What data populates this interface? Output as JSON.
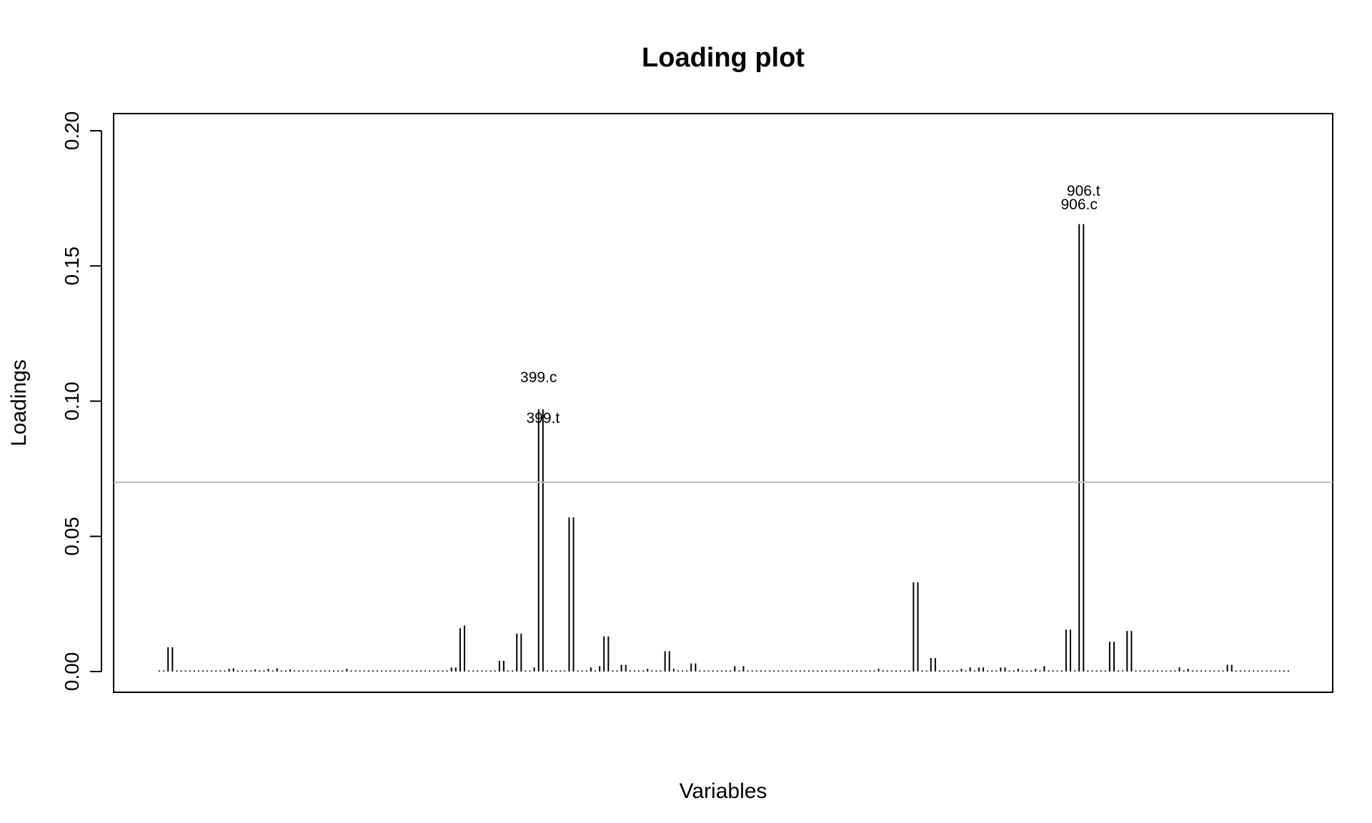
{
  "chart_data": {
    "type": "bar",
    "title": "Loading plot",
    "xlabel": "Variables",
    "ylabel": "Loadings",
    "ylim": [
      0,
      0.2
    ],
    "yticks": [
      "0.00",
      "0.05",
      "0.10",
      "0.15",
      "0.20"
    ],
    "grid": false,
    "threshold": 0.07,
    "threshold_color": "#bebebe",
    "bar_color": "#000000",
    "n_variables": 260,
    "bars": [
      {
        "i": 2,
        "v": 0.009
      },
      {
        "i": 3,
        "v": 0.009
      },
      {
        "i": 16,
        "v": 0.001
      },
      {
        "i": 17,
        "v": 0.0012
      },
      {
        "i": 22,
        "v": 0.0008
      },
      {
        "i": 25,
        "v": 0.001
      },
      {
        "i": 27,
        "v": 0.0012
      },
      {
        "i": 30,
        "v": 0.0008
      },
      {
        "i": 43,
        "v": 0.001
      },
      {
        "i": 67,
        "v": 0.0015
      },
      {
        "i": 68,
        "v": 0.0015
      },
      {
        "i": 69,
        "v": 0.016
      },
      {
        "i": 70,
        "v": 0.017
      },
      {
        "i": 78,
        "v": 0.004
      },
      {
        "i": 79,
        "v": 0.004
      },
      {
        "i": 82,
        "v": 0.014
      },
      {
        "i": 83,
        "v": 0.014
      },
      {
        "i": 86,
        "v": 0.0015
      },
      {
        "i": 87,
        "v": 0.097
      },
      {
        "i": 88,
        "v": 0.097
      },
      {
        "i": 94,
        "v": 0.057
      },
      {
        "i": 95,
        "v": 0.057
      },
      {
        "i": 99,
        "v": 0.0015
      },
      {
        "i": 101,
        "v": 0.002
      },
      {
        "i": 102,
        "v": 0.013
      },
      {
        "i": 103,
        "v": 0.013
      },
      {
        "i": 106,
        "v": 0.0025
      },
      {
        "i": 107,
        "v": 0.0025
      },
      {
        "i": 112,
        "v": 0.001
      },
      {
        "i": 116,
        "v": 0.0075
      },
      {
        "i": 117,
        "v": 0.0075
      },
      {
        "i": 118,
        "v": 0.001
      },
      {
        "i": 122,
        "v": 0.003
      },
      {
        "i": 123,
        "v": 0.003
      },
      {
        "i": 132,
        "v": 0.002
      },
      {
        "i": 134,
        "v": 0.002
      },
      {
        "i": 165,
        "v": 0.001
      },
      {
        "i": 173,
        "v": 0.033
      },
      {
        "i": 174,
        "v": 0.033
      },
      {
        "i": 177,
        "v": 0.005
      },
      {
        "i": 178,
        "v": 0.005
      },
      {
        "i": 184,
        "v": 0.001
      },
      {
        "i": 186,
        "v": 0.0015
      },
      {
        "i": 188,
        "v": 0.0015
      },
      {
        "i": 189,
        "v": 0.0015
      },
      {
        "i": 193,
        "v": 0.0015
      },
      {
        "i": 194,
        "v": 0.0015
      },
      {
        "i": 197,
        "v": 0.001
      },
      {
        "i": 201,
        "v": 0.001
      },
      {
        "i": 203,
        "v": 0.002
      },
      {
        "i": 208,
        "v": 0.0155
      },
      {
        "i": 209,
        "v": 0.0155
      },
      {
        "i": 211,
        "v": 0.1655
      },
      {
        "i": 212,
        "v": 0.1655
      },
      {
        "i": 218,
        "v": 0.011
      },
      {
        "i": 219,
        "v": 0.011
      },
      {
        "i": 222,
        "v": 0.015
      },
      {
        "i": 223,
        "v": 0.015
      },
      {
        "i": 234,
        "v": 0.0015
      },
      {
        "i": 236,
        "v": 0.001
      },
      {
        "i": 245,
        "v": 0.0025
      },
      {
        "i": 246,
        "v": 0.0025
      }
    ],
    "annotations": [
      {
        "text": "399.c",
        "i": 87,
        "v": 0.107
      },
      {
        "text": "399.t",
        "i": 88,
        "v": 0.092
      },
      {
        "text": "906.t",
        "i": 212,
        "v": 0.176
      },
      {
        "text": "906.c",
        "i": 211,
        "v": 0.171
      }
    ]
  }
}
